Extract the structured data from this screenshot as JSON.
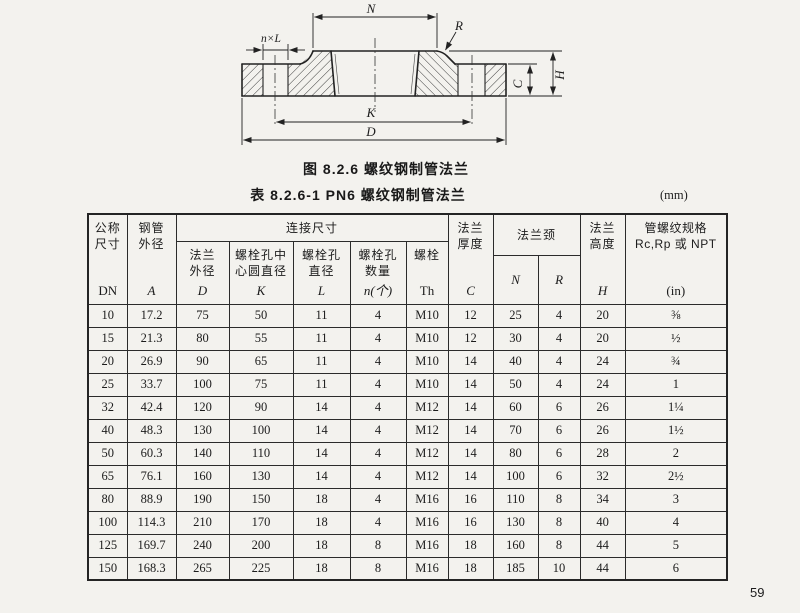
{
  "page": {
    "figure_caption": "图 8.2.6  螺纹钢制管法兰",
    "table_caption": "表 8.2.6-1  PN6 螺纹钢制管法兰",
    "unit_label": "(mm)",
    "page_number": "59",
    "colors": {
      "paper": "#f3f2ee",
      "ink": "#1c1c1c"
    }
  },
  "diagram": {
    "labels": {
      "n_top": "N",
      "nxl": "n×L",
      "r": "R",
      "k": "K",
      "d": "D",
      "c": "C",
      "h": "H"
    }
  },
  "table": {
    "headers": {
      "dn": {
        "label": "公称\n尺寸",
        "symbol": "DN"
      },
      "a": {
        "label": "钢管\n外径",
        "symbol": "A"
      },
      "conn": "连接尺寸",
      "d": {
        "label": "法兰\n外径",
        "symbol": "D"
      },
      "k": {
        "label": "螺栓孔中\n心圆直径",
        "symbol": "K"
      },
      "l": {
        "label": "螺栓孔\n直径",
        "symbol": "L"
      },
      "n": {
        "label": "螺栓孔\n数量",
        "symbol": "n(个)"
      },
      "th": {
        "label": "螺栓",
        "symbol": "Th"
      },
      "c": {
        "label": "法兰\n厚度",
        "symbol": "C"
      },
      "neck": "法兰颈",
      "neck_n": "N",
      "neck_r": "R",
      "h": {
        "label": "法兰\n高度",
        "symbol": "H"
      },
      "thread": {
        "label": "管螺纹规格\nRc,Rp 或 NPT",
        "symbol": "(in)"
      }
    },
    "rows": [
      [
        "10",
        "17.2",
        "75",
        "50",
        "11",
        "4",
        "M10",
        "12",
        "25",
        "4",
        "20",
        "⅜"
      ],
      [
        "15",
        "21.3",
        "80",
        "55",
        "11",
        "4",
        "M10",
        "12",
        "30",
        "4",
        "20",
        "½"
      ],
      [
        "20",
        "26.9",
        "90",
        "65",
        "11",
        "4",
        "M10",
        "14",
        "40",
        "4",
        "24",
        "¾"
      ],
      [
        "25",
        "33.7",
        "100",
        "75",
        "11",
        "4",
        "M10",
        "14",
        "50",
        "4",
        "24",
        "1"
      ],
      [
        "32",
        "42.4",
        "120",
        "90",
        "14",
        "4",
        "M12",
        "14",
        "60",
        "6",
        "26",
        "1¼"
      ],
      [
        "40",
        "48.3",
        "130",
        "100",
        "14",
        "4",
        "M12",
        "14",
        "70",
        "6",
        "26",
        "1½"
      ],
      [
        "50",
        "60.3",
        "140",
        "110",
        "14",
        "4",
        "M12",
        "14",
        "80",
        "6",
        "28",
        "2"
      ],
      [
        "65",
        "76.1",
        "160",
        "130",
        "14",
        "4",
        "M12",
        "14",
        "100",
        "6",
        "32",
        "2½"
      ],
      [
        "80",
        "88.9",
        "190",
        "150",
        "18",
        "4",
        "M16",
        "16",
        "110",
        "8",
        "34",
        "3"
      ],
      [
        "100",
        "114.3",
        "210",
        "170",
        "18",
        "4",
        "M16",
        "16",
        "130",
        "8",
        "40",
        "4"
      ],
      [
        "125",
        "169.7",
        "240",
        "200",
        "18",
        "8",
        "M16",
        "18",
        "160",
        "8",
        "44",
        "5"
      ],
      [
        "150",
        "168.3",
        "265",
        "225",
        "18",
        "8",
        "M16",
        "18",
        "185",
        "10",
        "44",
        "6"
      ]
    ]
  }
}
